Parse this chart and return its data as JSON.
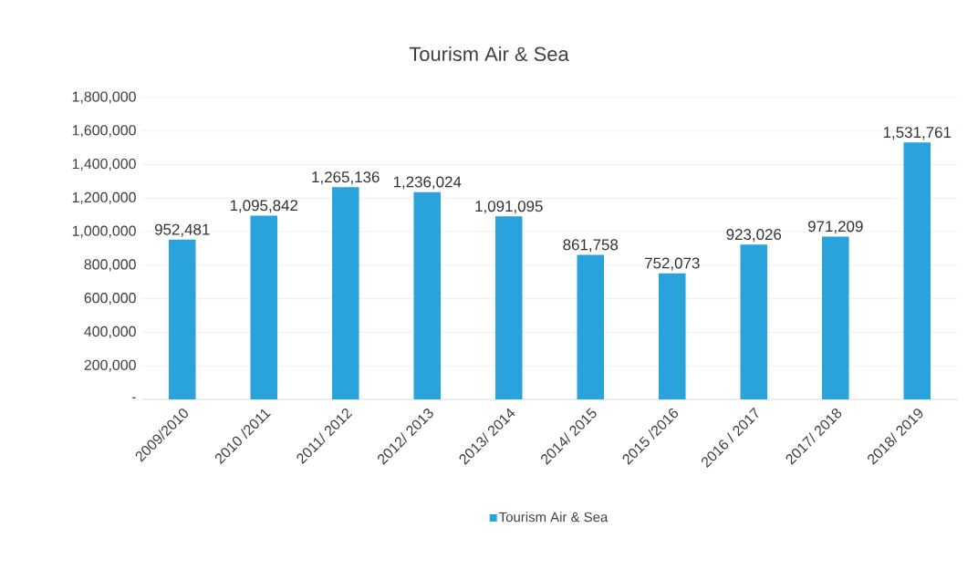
{
  "chart_data": {
    "type": "bar",
    "title": "Tourism Air & Sea",
    "categories": [
      "2009/2010",
      "2010 /2011",
      "2011/ 2012",
      "2012/ 2013",
      "2013/ 2014",
      "2014/ 2015",
      "2015 /2016",
      "2016 / 2017",
      "2017/ 2018",
      "2018/ 2019"
    ],
    "series": [
      {
        "name": "Tourism Air & Sea",
        "color": "#2aa2dc",
        "values": [
          952481,
          1095842,
          1265136,
          1236024,
          1091095,
          861758,
          752073,
          923026,
          971209,
          1531761
        ],
        "value_labels": [
          "952,481",
          "1,095,842",
          "1,265,136",
          "1,236,024",
          "1,091,095",
          "861,758",
          "752,073",
          "923,026",
          "971,209",
          "1,531,761"
        ]
      }
    ],
    "ylim": [
      0,
      1800000
    ],
    "yticks": [
      {
        "value": 0,
        "label": "-"
      },
      {
        "value": 200000,
        "label": "200,000"
      },
      {
        "value": 400000,
        "label": "400,000"
      },
      {
        "value": 600000,
        "label": "600,000"
      },
      {
        "value": 800000,
        "label": "800,000"
      },
      {
        "value": 1000000,
        "label": "1,000,000"
      },
      {
        "value": 1200000,
        "label": "1,200,000"
      },
      {
        "value": 1400000,
        "label": "1,400,000"
      },
      {
        "value": 1600000,
        "label": "1,600,000"
      },
      {
        "value": 1800000,
        "label": "1,800,000"
      }
    ],
    "grid": "y",
    "legend": "bottom"
  }
}
